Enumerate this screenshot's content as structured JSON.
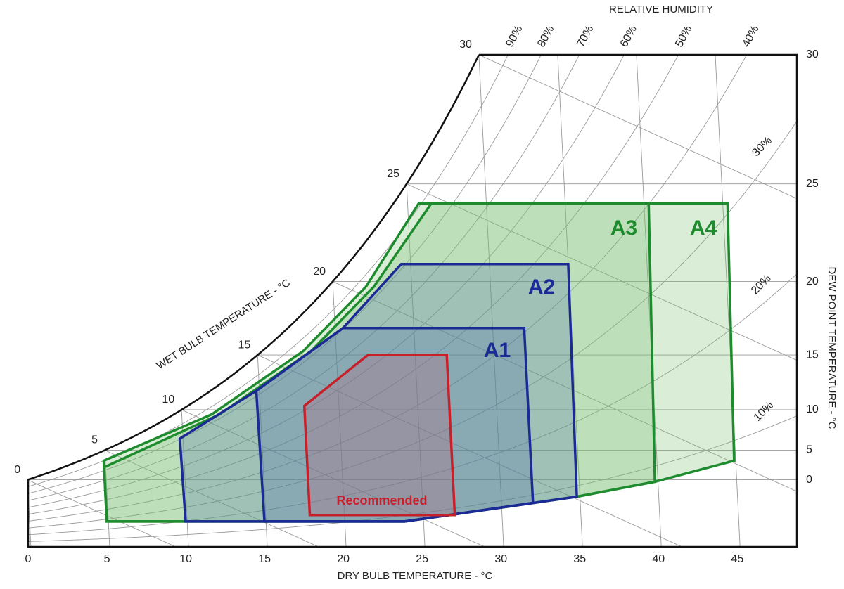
{
  "chart_data": {
    "type": "psychrometric",
    "top_label": "RELATIVE HUMIDITY",
    "x_label": "DRY BULB TEMPERATURE - °C",
    "y_label": "DEW POINT TEMPERATURE - °C",
    "wet_bulb_label": "WET BULB TEMPERATURE - °C",
    "xlim": [
      0,
      48.6
    ],
    "xticks": [
      0,
      5,
      10,
      15,
      20,
      25,
      30,
      35,
      40,
      45
    ],
    "yticks": [
      0,
      5,
      10,
      15,
      20,
      25,
      30
    ],
    "wet_bulb_ticks": [
      0,
      5,
      10,
      15,
      20,
      25,
      30
    ],
    "rh_ticks": [
      {
        "value": 90,
        "label": "90%"
      },
      {
        "value": 80,
        "label": "80%"
      },
      {
        "value": 70,
        "label": "70%"
      },
      {
        "value": 60,
        "label": "60%"
      },
      {
        "value": 50,
        "label": "50%"
      },
      {
        "value": 40,
        "label": "40%"
      },
      {
        "value": 30,
        "label": "30%"
      },
      {
        "value": 20,
        "label": "20%"
      },
      {
        "value": 10,
        "label": "10%"
      }
    ],
    "regions": [
      {
        "name": "A4",
        "color": "#1e8c2e",
        "points": [
          [
            4.9,
            3.4
          ],
          [
            4.9,
            -12.2
          ],
          [
            23.8,
            -12.2
          ],
          [
            34.8,
            -3.8
          ],
          [
            39.8,
            -0.4
          ],
          [
            44.9,
            3.4
          ],
          [
            45.3,
            24.1
          ],
          [
            25.7,
            24.1
          ],
          [
            22.1,
            19.7
          ],
          [
            17.9,
            15.3
          ],
          [
            11.9,
            9.5
          ]
        ]
      },
      {
        "name": "A3",
        "color": "#1e8c2e",
        "points": [
          [
            4.9,
            2.3
          ],
          [
            4.9,
            -12.2
          ],
          [
            23.8,
            -12.2
          ],
          [
            34.8,
            -3.8
          ],
          [
            39.8,
            -0.4
          ],
          [
            40.3,
            24.1
          ],
          [
            26.5,
            24.1
          ],
          [
            22.6,
            19.7
          ],
          [
            18.4,
            15.3
          ],
          [
            12.4,
            9.5
          ]
        ]
      },
      {
        "name": "A2",
        "color": "#1b2a94",
        "points": [
          [
            9.8,
            6.6
          ],
          [
            9.9,
            -12.2
          ],
          [
            23.8,
            -12.2
          ],
          [
            34.8,
            -3.8
          ],
          [
            35.0,
            21.0
          ],
          [
            24.4,
            21.0
          ],
          [
            20.5,
            17.0
          ],
          [
            14.8,
            11.9
          ]
        ]
      },
      {
        "name": "A1",
        "color": "#1b2a94",
        "points": [
          [
            14.8,
            11.9
          ],
          [
            14.9,
            -12.2
          ],
          [
            23.8,
            -12.2
          ],
          [
            32.0,
            -5.5
          ],
          [
            32.0,
            17.0
          ],
          [
            20.5,
            17.0
          ]
        ]
      },
      {
        "name": "Recommended",
        "color": "#c8202a",
        "points": [
          [
            17.8,
            10.4
          ],
          [
            22.0,
            15.0
          ],
          [
            27.0,
            15.0
          ],
          [
            27.0,
            -9.5
          ],
          [
            17.8,
            -9.5
          ]
        ]
      }
    ]
  }
}
